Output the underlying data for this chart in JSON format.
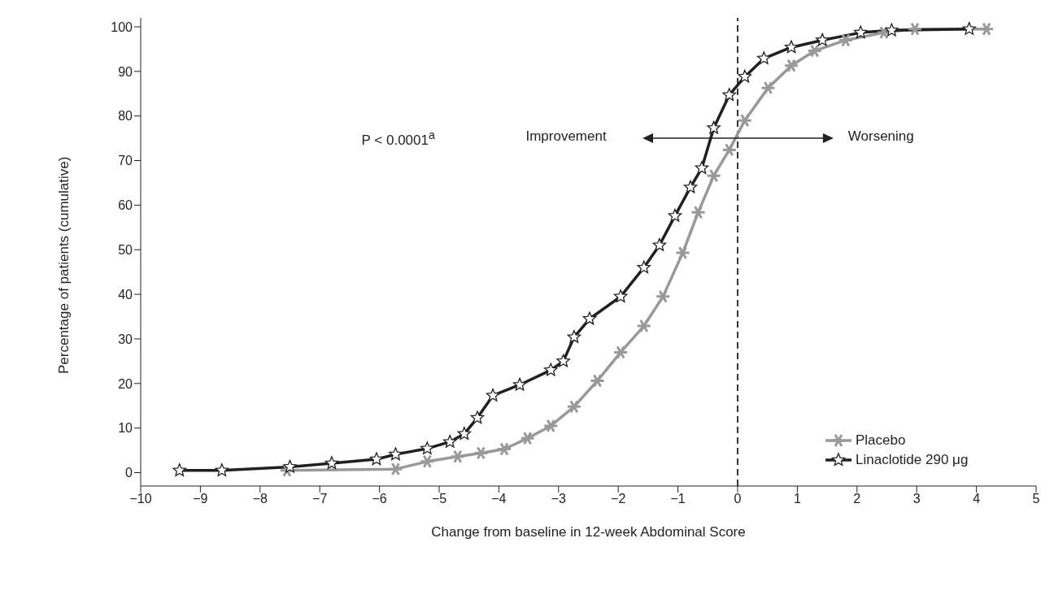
{
  "chart_data": {
    "type": "line",
    "xlabel": "Change from baseline in 12-week Abdominal Score",
    "ylabel": "Percentage of patients (cumulative)",
    "xlim": [
      -10,
      5
    ],
    "xticks": [
      -10,
      -9,
      -8,
      -7,
      -6,
      -5,
      -4,
      -3,
      -2,
      -1,
      0,
      1,
      2,
      3,
      4,
      5
    ],
    "ylim": [
      -3,
      102
    ],
    "yticks": [
      0,
      10,
      20,
      30,
      40,
      50,
      60,
      70,
      80,
      90,
      100
    ],
    "grid": false,
    "legend": "bottom right",
    "annotations": [
      "P < 0.0001$^{a}$",
      "Improvement",
      "Worsening"
    ],
    "ref_lines": [
      {
        "axis": "x",
        "value": 0,
        "line_style": "dashed",
        "color": "#222222"
      }
    ],
    "series": [
      {
        "name": "Placebo",
        "color": "#999999",
        "marker": "cross",
        "x": [
          -7.55,
          -5.73,
          -5.2,
          -4.69,
          -4.3,
          -3.91,
          -3.52,
          -3.13,
          -2.74,
          -2.35,
          -1.96,
          -1.57,
          -1.25,
          -0.92,
          -0.66,
          -0.4,
          -0.14,
          0.12,
          0.51,
          0.9,
          1.29,
          1.81,
          2.45,
          2.97,
          4.17
        ],
        "values": [
          0.5,
          0.8,
          2.5,
          3.6,
          4.4,
          5.3,
          7.7,
          10.5,
          14.8,
          20.6,
          27,
          32.9,
          39.5,
          49.3,
          58.4,
          66.6,
          72.4,
          79,
          86.3,
          91.3,
          94.6,
          97,
          98.7,
          99.5,
          99.5
        ]
      },
      {
        "name": "Linaclotide 290 μg",
        "color": "#231f20",
        "marker": "star",
        "x": [
          -9.35,
          -8.64,
          -7.5,
          -6.8,
          -6.05,
          -5.73,
          -5.2,
          -4.82,
          -4.58,
          -4.36,
          -4.1,
          -3.65,
          -3.13,
          -2.92,
          -2.74,
          -2.48,
          -1.96,
          -1.57,
          -1.31,
          -1.05,
          -0.79,
          -0.6,
          -0.4,
          -0.14,
          0.12,
          0.44,
          0.9,
          1.42,
          2.06,
          2.58,
          3.88
        ],
        "values": [
          0.5,
          0.5,
          1.3,
          2.1,
          3,
          4.1,
          5.4,
          6.9,
          8.7,
          12.3,
          17.3,
          19.7,
          23,
          25,
          30.4,
          34.5,
          39.5,
          46,
          51,
          57.6,
          64,
          68.3,
          77.3,
          84.7,
          88.8,
          92.9,
          95.4,
          97,
          98.7,
          99.2,
          99.5
        ]
      }
    ]
  }
}
